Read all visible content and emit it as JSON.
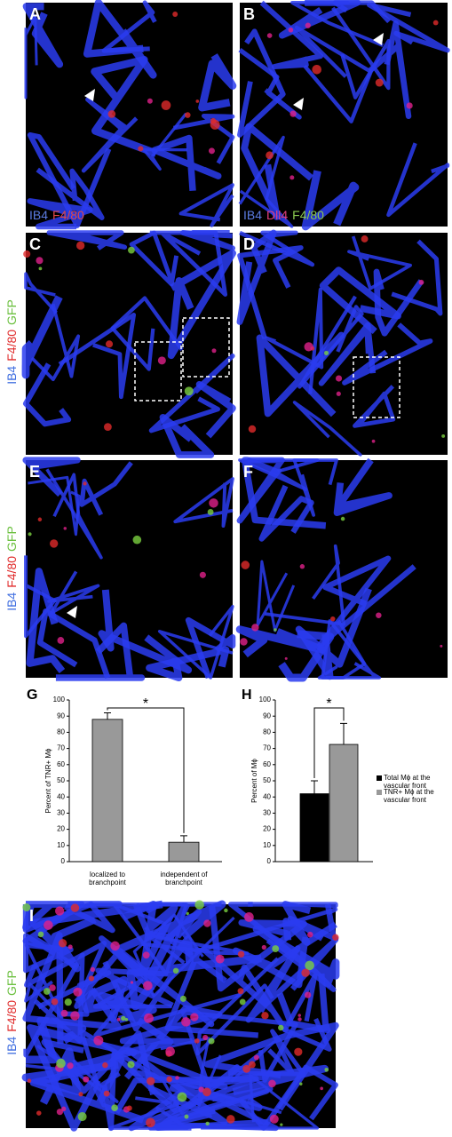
{
  "panels": [
    {
      "label": "A",
      "stain": [
        {
          "text": "IB4",
          "color": "#5b7be0"
        },
        {
          "text": "F4/80",
          "color": "#e04848"
        }
      ],
      "orientation": "horizontal"
    },
    {
      "label": "B",
      "stain": [
        {
          "text": "IB4",
          "color": "#5b7be0"
        },
        {
          "text": "Dll4",
          "color": "#e0407a"
        },
        {
          "text": "F4/80",
          "color": "#8ac850"
        }
      ],
      "orientation": "horizontal"
    },
    {
      "label": "C",
      "stain": [
        {
          "text": "IB4",
          "color": "#3f6ee0"
        },
        {
          "text": "F4/80",
          "color": "#e02a2a"
        },
        {
          "text": "GFP",
          "color": "#6cc040"
        }
      ],
      "orientation": "vertical"
    },
    {
      "label": "D"
    },
    {
      "label": "E",
      "stain": [
        {
          "text": "IB4",
          "color": "#3f6ee0"
        },
        {
          "text": "F4/80",
          "color": "#e02a2a"
        },
        {
          "text": "GFP",
          "color": "#6cc040"
        }
      ],
      "orientation": "vertical"
    },
    {
      "label": "F"
    },
    {
      "label": "I",
      "stain": [
        {
          "text": "IB4",
          "color": "#3f6ee0"
        },
        {
          "text": "F4/80",
          "color": "#e02a2a"
        },
        {
          "text": "GFP",
          "color": "#6cc040"
        }
      ],
      "orientation": "vertical"
    }
  ],
  "chart_data": [
    {
      "type": "bar",
      "label": "G",
      "y_label": "Percent of TNR+ Mϕ",
      "categories": [
        "localized to branchpoint",
        "independent of branchpoint"
      ],
      "values": [
        88,
        12
      ],
      "errors": [
        4,
        4
      ],
      "color": "#999999",
      "ylim": [
        0,
        100
      ],
      "yticks": [
        0,
        10,
        20,
        30,
        40,
        50,
        60,
        70,
        80,
        90,
        100
      ],
      "annotation": "*"
    },
    {
      "type": "bar",
      "label": "H",
      "y_label": "Percent of Mϕ",
      "series": [
        {
          "name": "Total Mϕ at the vascular front",
          "color": "#000000",
          "values": [
            42
          ],
          "errors": [
            8
          ]
        },
        {
          "name": "TNR+ Mϕ at the vascular front",
          "color": "#999999",
          "values": [
            72.5
          ],
          "errors": [
            13
          ]
        }
      ],
      "ylim": [
        0,
        100
      ],
      "yticks": [
        0,
        10,
        20,
        30,
        40,
        50,
        60,
        70,
        80,
        90,
        100
      ],
      "annotation": "*"
    }
  ]
}
